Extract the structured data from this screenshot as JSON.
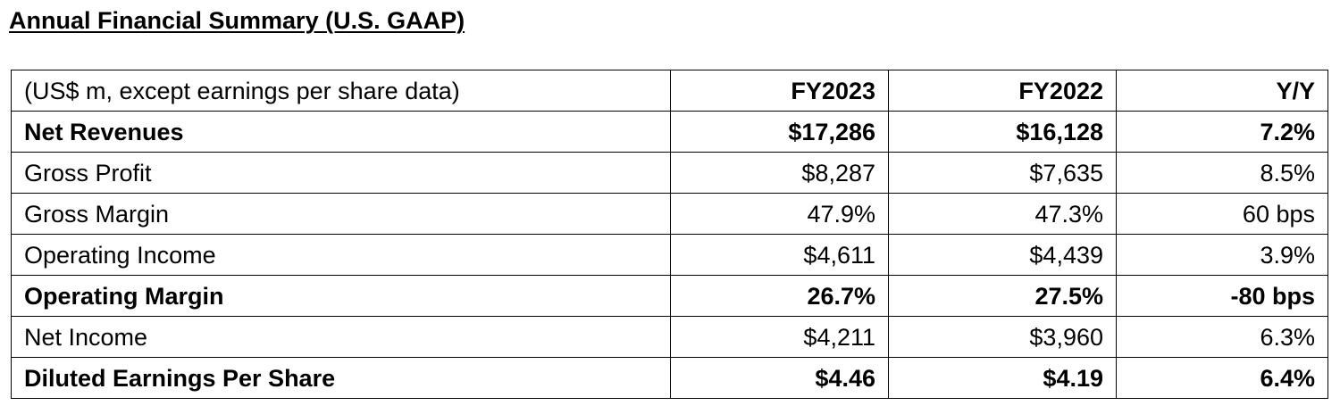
{
  "document": {
    "title": "Annual Financial Summary (U.S. GAAP)"
  },
  "table": {
    "header": {
      "label": "(US$ m, except earnings per share data)",
      "fy2023": "FY2023",
      "fy2022": "FY2022",
      "yy": "Y/Y"
    },
    "rows": [
      {
        "label": "Net Revenues",
        "fy2023": "$17,286",
        "fy2022": "$16,128",
        "yy": "7.2%",
        "bold": true
      },
      {
        "label": "Gross Profit",
        "fy2023": "$8,287",
        "fy2022": "$7,635",
        "yy": "8.5%",
        "bold": false
      },
      {
        "label": "Gross Margin",
        "fy2023": "47.9%",
        "fy2022": "47.3%",
        "yy": "60 bps",
        "bold": false
      },
      {
        "label": "Operating Income",
        "fy2023": "$4,611",
        "fy2022": "$4,439",
        "yy": "3.9%",
        "bold": false
      },
      {
        "label": "Operating Margin",
        "fy2023": "26.7%",
        "fy2022": "27.5%",
        "yy": "-80 bps",
        "bold": true
      },
      {
        "label": "Net Income",
        "fy2023": "$4,211",
        "fy2022": "$3,960",
        "yy": "6.3%",
        "bold": false
      },
      {
        "label": "Diluted Earnings Per Share",
        "fy2023": "$4.46",
        "fy2022": "$4.19",
        "yy": "6.4%",
        "bold": true
      }
    ]
  }
}
